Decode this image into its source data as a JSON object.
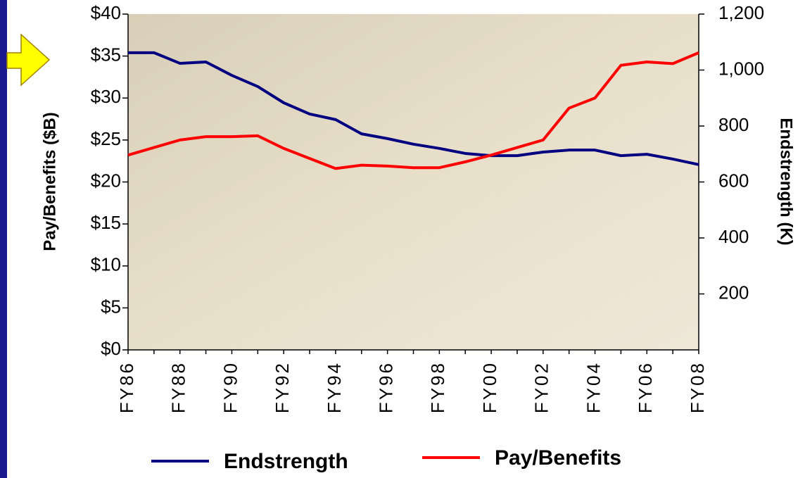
{
  "chart_data": {
    "type": "line",
    "y_label": "Pay/Benefits  ($B)",
    "y2_label": "Endstrength (K)",
    "categories": [
      "FY86",
      null,
      "FY88",
      null,
      "FY90",
      null,
      "FY92",
      null,
      "FY94",
      null,
      "FY96",
      null,
      "FY98",
      null,
      "FY00",
      null,
      "FY02",
      null,
      "FY04",
      null,
      "FY06",
      null,
      "FY08"
    ],
    "series": [
      {
        "name": "Endstrength",
        "color": "#000080",
        "axis": "y2",
        "values": [
          1062,
          1062,
          1024,
          1029,
          981,
          941,
          883,
          843,
          823,
          772,
          755,
          735,
          720,
          702,
          694,
          694,
          707,
          714,
          714,
          694,
          699,
          682,
          662
        ]
      },
      {
        "name": "Pay/Benefits",
        "color": "#ff0000",
        "values": [
          23.2,
          24.1,
          25.0,
          25.4,
          25.4,
          25.5,
          24.0,
          22.8,
          21.6,
          22.0,
          21.9,
          21.7,
          21.7,
          22.4,
          23.2,
          24.1,
          25.0,
          28.8,
          30.0,
          33.9,
          34.3,
          34.1,
          35.4
        ]
      }
    ],
    "ylim": [
      0,
      40
    ],
    "yticks": [
      {
        "value": 0,
        "label": "$0"
      },
      {
        "value": 5,
        "label": "$5"
      },
      {
        "value": 10,
        "label": "$10"
      },
      {
        "value": 15,
        "label": "$15"
      },
      {
        "value": 20,
        "label": "$20"
      },
      {
        "value": 25,
        "label": "$25"
      },
      {
        "value": 30,
        "label": "$30"
      },
      {
        "value": 35,
        "label": "$35"
      },
      {
        "value": 40,
        "label": "$40"
      }
    ],
    "y2lim": [
      0,
      1200
    ],
    "y2ticks": [
      200,
      400,
      600,
      800,
      {
        "value": 1000,
        "label": "1,000"
      },
      {
        "value": 1200,
        "label": "1,200"
      }
    ],
    "legend": "bottom"
  }
}
